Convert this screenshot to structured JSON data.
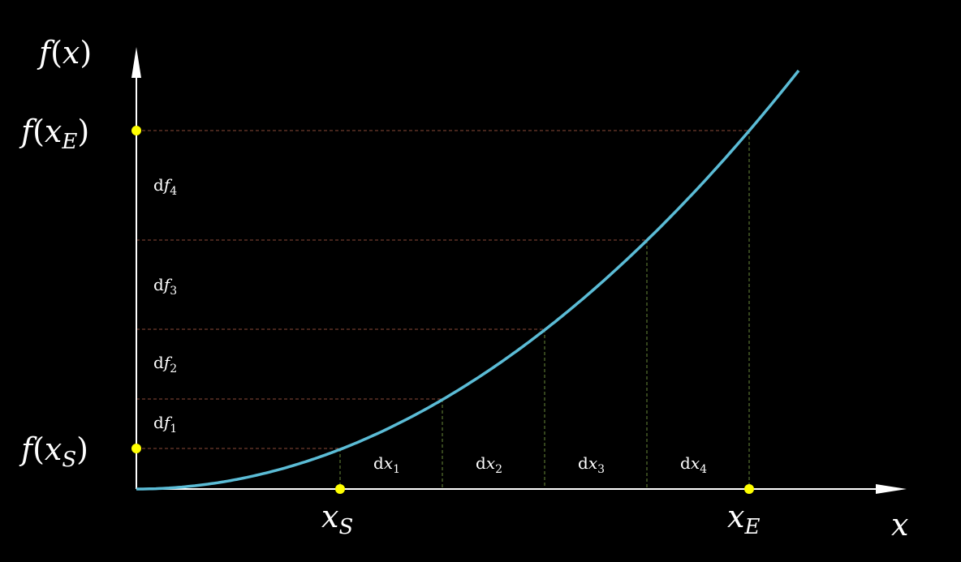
{
  "axes": {
    "y_label": {
      "main": "f",
      "open": "(",
      "var": "x",
      "close": ")"
    },
    "x_label": {
      "var": "x"
    }
  },
  "y_points": [
    {
      "main": "f",
      "open": "(",
      "var": "x",
      "sub": "E",
      "close": ")"
    },
    {
      "main": "f",
      "open": "(",
      "var": "x",
      "sub": "S",
      "close": ")"
    }
  ],
  "x_points": [
    {
      "var": "x",
      "sub": "S"
    },
    {
      "var": "x",
      "sub": "E"
    }
  ],
  "df_labels": [
    {
      "d": "d",
      "var": "f",
      "sub": "4"
    },
    {
      "d": "d",
      "var": "f",
      "sub": "3"
    },
    {
      "d": "d",
      "var": "f",
      "sub": "2"
    },
    {
      "d": "d",
      "var": "f",
      "sub": "1"
    }
  ],
  "dx_labels": [
    {
      "d": "d",
      "var": "x",
      "sub": "1"
    },
    {
      "d": "d",
      "var": "x",
      "sub": "2"
    },
    {
      "d": "d",
      "var": "x",
      "sub": "3"
    },
    {
      "d": "d",
      "var": "x",
      "sub": "4"
    }
  ]
}
